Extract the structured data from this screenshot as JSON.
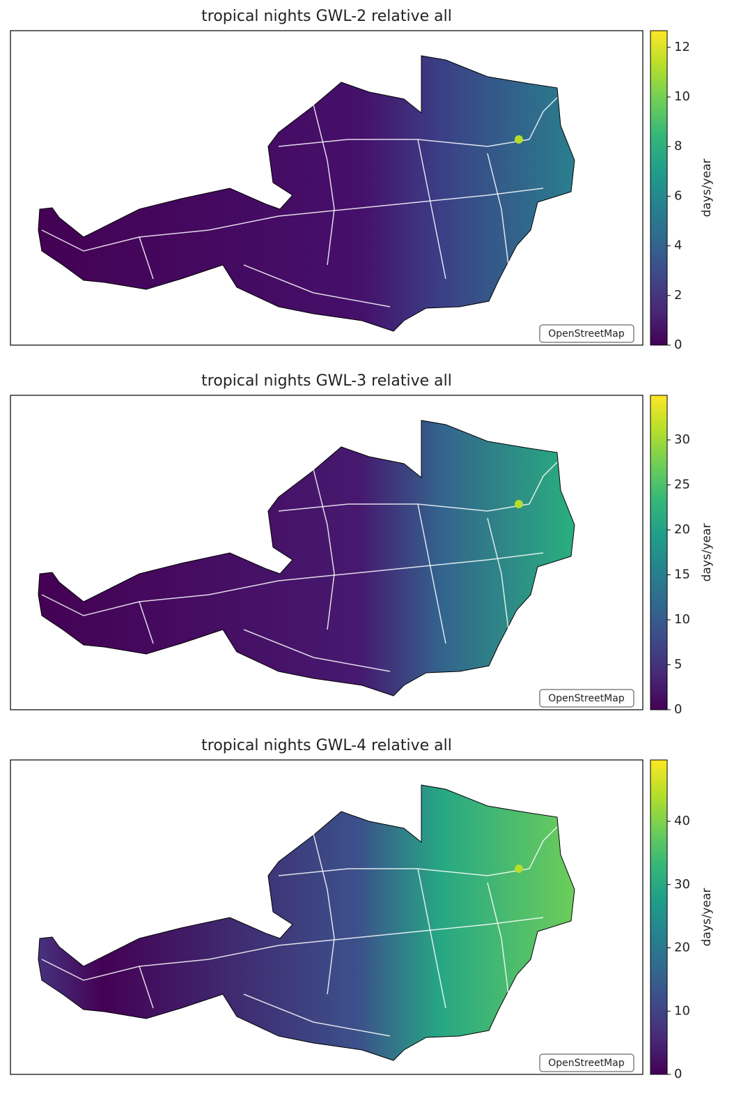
{
  "colormap": "viridis",
  "panels": [
    {
      "title": "tropical nights GWL-2 relative all",
      "colorbar": {
        "label": "days/year",
        "lim": [
          0,
          12.67
        ],
        "ticks": [
          0,
          2,
          4,
          6,
          8,
          10,
          12
        ]
      },
      "attribution": "OpenStreetMap"
    },
    {
      "title": "tropical nights GWL-3 relative all",
      "colorbar": {
        "label": "days/year",
        "lim": [
          0,
          34.96
        ],
        "ticks": [
          0,
          5,
          10,
          15,
          20,
          25,
          30
        ]
      },
      "attribution": "OpenStreetMap"
    },
    {
      "title": "tropical nights GWL-4 relative all",
      "colorbar": {
        "label": "days/year",
        "lim": [
          0,
          49.7
        ],
        "ticks": [
          0,
          10,
          20,
          30,
          40
        ]
      },
      "attribution": "OpenStreetMap"
    }
  ]
}
